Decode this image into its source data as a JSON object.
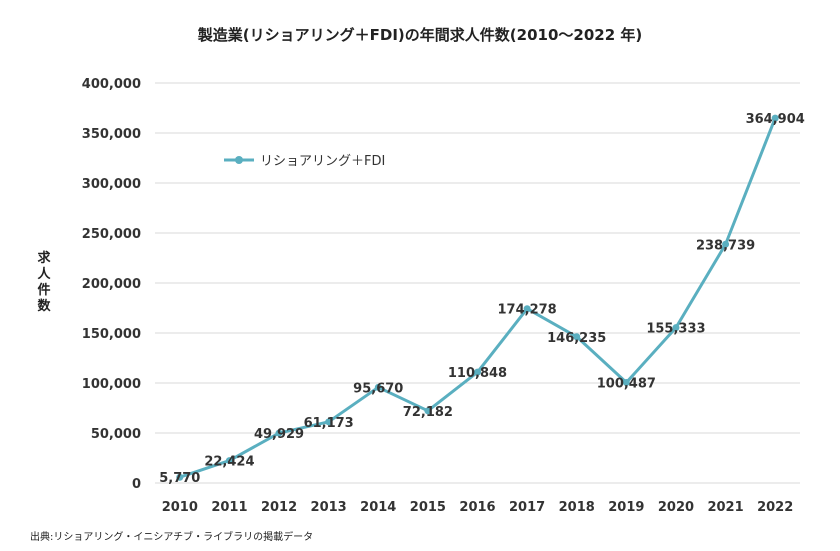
{
  "source_note": "出典:リショアリング・イニシアチブ・ライブラリの掲載データ",
  "colors": {
    "series": "#5aafc0",
    "grid": "#d9d9d9",
    "text": "#333333"
  },
  "chart_data": {
    "type": "line",
    "title": "製造業(リショアリング＋FDI)の年間求人件数(2010〜2022 年)",
    "xlabel": "",
    "ylabel": "求人件数",
    "ylim": [
      0,
      400000
    ],
    "yticks": [
      0,
      50000,
      100000,
      150000,
      200000,
      250000,
      300000,
      350000,
      400000
    ],
    "ytick_labels": [
      "0",
      "50,000",
      "100,000",
      "150,000",
      "200,000",
      "250,000",
      "300,000",
      "350,000",
      "400,000"
    ],
    "grid": true,
    "legend_position": "top-left",
    "x": [
      "2010",
      "2011",
      "2012",
      "2013",
      "2014",
      "2015",
      "2016",
      "2017",
      "2018",
      "2019",
      "2020",
      "2021",
      "2022"
    ],
    "series": [
      {
        "name": "リショアリング＋FDI",
        "values": [
          5770,
          22424,
          49929,
          61173,
          95670,
          72182,
          110848,
          174278,
          146235,
          100487,
          155333,
          238739,
          364904
        ],
        "labels": [
          "5,770",
          "22,424",
          "49,929",
          "61,173",
          "95,670",
          "72,182",
          "110,848",
          "174,278",
          "146,235",
          "100,487",
          "155,333",
          "238,739",
          "364,904"
        ]
      }
    ]
  }
}
